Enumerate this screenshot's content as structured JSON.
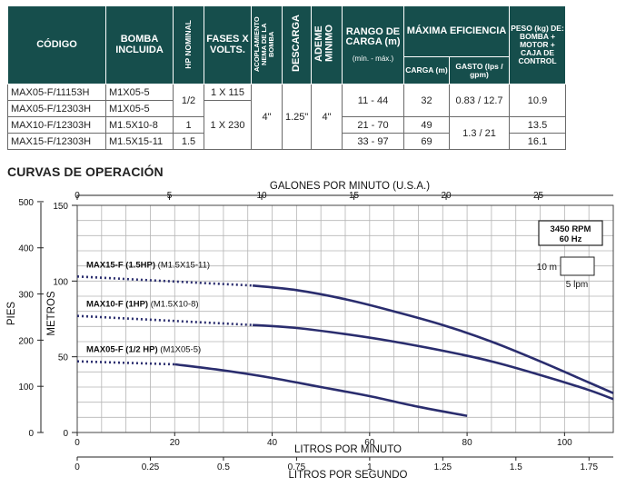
{
  "spec_table": {
    "headers": {
      "codigo": "CÓDIGO",
      "bomba": "BOMBA INCLUIDA",
      "hp": "HP NOMINAL",
      "fases": "FASES X VOLTS.",
      "acoplamiento": "ACOPLAMIENTO NEMA DE LA BOMBA",
      "descarga": "DESCARGA",
      "ademe": "ADEME MINIMO",
      "rango_title": "RANGO DE CARGA (m)",
      "rango_sub": "(mín. - máx.)",
      "eficiencia": "MÁXIMA EFICIENCIA",
      "carga": "CARGA (m)",
      "gasto": "GASTO (lps / gpm)",
      "peso": "PESO (kg) DE: BOMBA + MOTOR + CAJA DE CONTROL"
    },
    "rows": [
      {
        "codigo": "MAX05-F/11153H",
        "bomba": "M1X05-5"
      },
      {
        "codigo": "MAX05-F/12303H",
        "bomba": "M1X05-5"
      },
      {
        "codigo": "MAX10-F/12303H",
        "bomba": "M1.5X10-8"
      },
      {
        "codigo": "MAX15-F/12303H",
        "bomba": "M1.5X15-11"
      }
    ],
    "merged": {
      "hp_05": "1/2",
      "hp_10": "1",
      "hp_15": "1.5",
      "fases_115": "1 X 115",
      "fases_230": "1 X 230",
      "acoplamiento": "4\"",
      "descarga": "1.25\"",
      "ademe": "4\"",
      "rango_05": "11 - 44",
      "rango_10": "21 - 70",
      "rango_15": "33 - 97",
      "carga_05": "32",
      "carga_10": "49",
      "carga_15": "69",
      "gasto_05": "0.83 / 12.7",
      "gasto_1015": "1.3 / 21",
      "peso_05": "10.9",
      "peso_10": "13.5",
      "peso_15": "16.1"
    }
  },
  "curves_title": "CURVAS DE OPERACIÓN",
  "chart_data": {
    "type": "line",
    "x_primary": {
      "label": "LITROS POR MINUTO",
      "range": [
        0,
        110
      ],
      "ticks": [
        0,
        20,
        40,
        60,
        80,
        100
      ]
    },
    "x_top": {
      "label": "GALONES POR MINUTO (U.S.A.)",
      "range": [
        0,
        29.06
      ],
      "ticks": [
        0,
        5,
        10,
        15,
        20,
        25
      ]
    },
    "x_bottom2": {
      "label": "LITROS POR SEGUNDO",
      "range": [
        0,
        1.833
      ],
      "ticks": [
        "0",
        "0.25",
        "0.5",
        "0.75",
        "1",
        "1.25",
        "1.5",
        "1.75"
      ],
      "tick_values": [
        0,
        0.25,
        0.5,
        0.75,
        1,
        1.25,
        1.5,
        1.75
      ]
    },
    "y_primary": {
      "label": "METROS",
      "range": [
        0,
        150
      ],
      "ticks": [
        0,
        50,
        100,
        150
      ]
    },
    "y_left": {
      "label": "PIES",
      "range": [
        0,
        492
      ],
      "ticks": [
        0,
        100,
        200,
        300,
        400,
        500
      ]
    },
    "grid": true,
    "rating_box": {
      "line1": "3450 RPM",
      "line2": "60 Hz"
    },
    "scale_legend": {
      "vertical": "10 m",
      "horizontal": "5 lpm"
    },
    "series": [
      {
        "name": "MAX15-F (1.5HP)",
        "pump": "(M1.5X15-11)",
        "dotted": [
          [
            0,
            103
          ],
          [
            36,
            97
          ]
        ],
        "solid": [
          [
            36,
            97
          ],
          [
            45,
            94
          ],
          [
            55,
            88
          ],
          [
            65,
            80
          ],
          [
            75,
            71
          ],
          [
            85,
            60
          ],
          [
            95,
            47
          ],
          [
            105,
            33
          ],
          [
            110,
            26
          ]
        ]
      },
      {
        "name": "MAX10-F (1HP)",
        "pump": "(M1.5X10-8)",
        "dotted": [
          [
            0,
            77
          ],
          [
            36,
            71
          ]
        ],
        "solid": [
          [
            36,
            71
          ],
          [
            45,
            69
          ],
          [
            55,
            65
          ],
          [
            65,
            60
          ],
          [
            75,
            54
          ],
          [
            85,
            47
          ],
          [
            95,
            38
          ],
          [
            105,
            28
          ],
          [
            110,
            22
          ]
        ]
      },
      {
        "name": "MAX05-F (1/2 HP)",
        "pump": "(M1X05-5)",
        "dotted": [
          [
            0,
            47
          ],
          [
            20,
            45
          ]
        ],
        "solid": [
          [
            20,
            45
          ],
          [
            30,
            41
          ],
          [
            40,
            36
          ],
          [
            50,
            30
          ],
          [
            60,
            24
          ],
          [
            70,
            17
          ],
          [
            80,
            11
          ]
        ]
      }
    ],
    "colors": {
      "curve": "#2a2d6e",
      "table_header": "#164e4c"
    }
  }
}
